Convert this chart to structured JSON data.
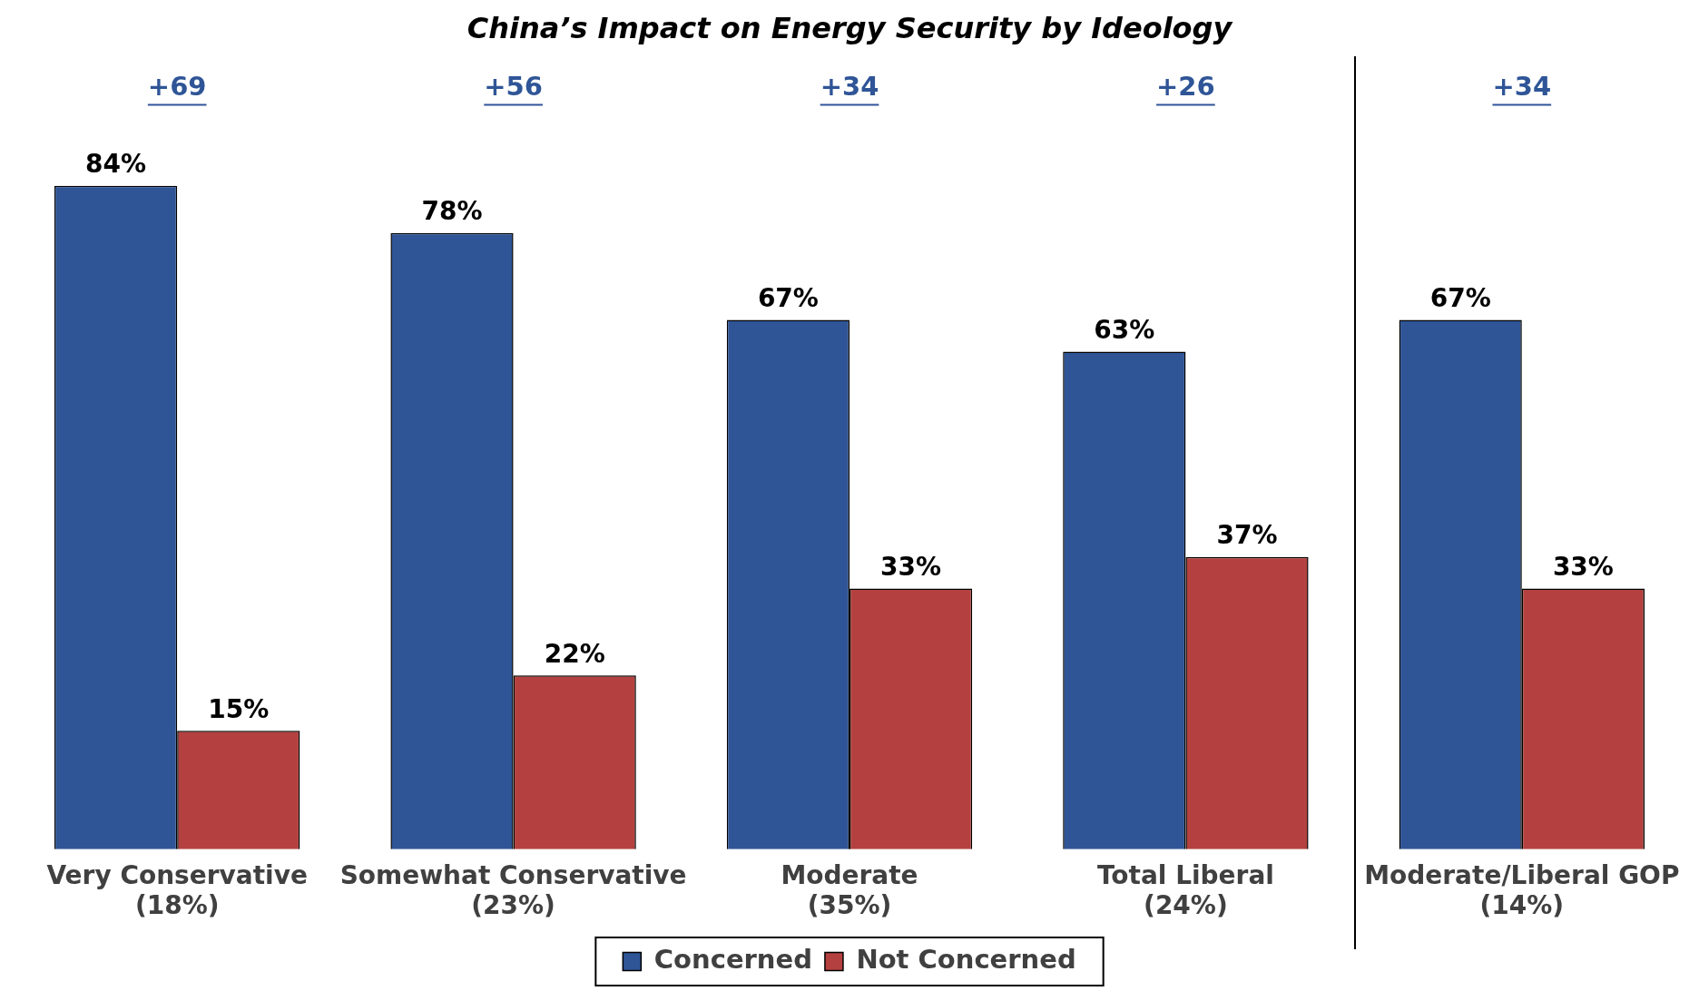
{
  "chart_data": {
    "type": "bar",
    "title": "China’s Impact on Energy Security by Ideology",
    "categories": [
      "Very Conservative\n(18%)",
      "Somewhat Conservative\n(23%)",
      "Moderate\n(35%)",
      "Total Liberal\n(24%)",
      "Moderate/Liberal GOP\n(14%)"
    ],
    "series": [
      {
        "name": "Concerned",
        "color": "#2f5597",
        "values": [
          84,
          78,
          67,
          63,
          67
        ],
        "value_labels": [
          "84%",
          "78%",
          "67%",
          "63%",
          "67%"
        ]
      },
      {
        "name": "Not Concerned",
        "color": "#b4413f",
        "values": [
          15,
          22,
          33,
          37,
          33
        ],
        "value_labels": [
          "15%",
          "22%",
          "33%",
          "37%",
          "33%"
        ]
      }
    ],
    "annotations": [
      "+69",
      "+56",
      "+34",
      "+26",
      "+34"
    ],
    "legend": "bottom"
  }
}
